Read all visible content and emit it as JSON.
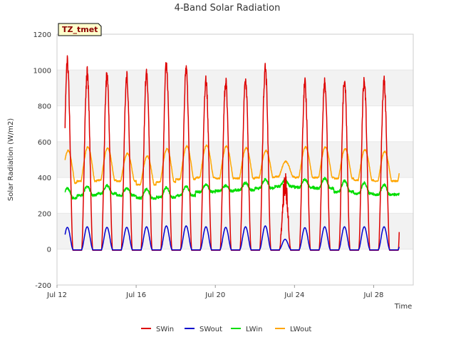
{
  "chart_data": {
    "type": "line",
    "title": "4-Band Solar Radiation",
    "xlabel": "Time",
    "ylabel": "Solar Radiation (W/m2)",
    "tag": "TZ_tmet",
    "ylim": [
      -200,
      1200
    ],
    "yticks": [
      -200,
      0,
      200,
      400,
      600,
      800,
      1000,
      1200
    ],
    "xlim": [
      12.0,
      30.0
    ],
    "xticks": [
      {
        "value": 12,
        "label": "Jul 12"
      },
      {
        "value": 16,
        "label": "Jul 16"
      },
      {
        "value": 20,
        "label": "Jul 20"
      },
      {
        "value": 24,
        "label": "Jul 24"
      },
      {
        "value": 28,
        "label": "Jul 28"
      }
    ],
    "grid": "horizontal bands",
    "legend_position": "bottom",
    "series": [
      {
        "name": "SWin",
        "color": "#dd0000",
        "daily_peaks": [
          1080,
          1020,
          1010,
          1000,
          1020,
          1075,
          1050,
          985,
          970,
          975,
          1050,
          450,
          960,
          970,
          975,
          980,
          975
        ]
      },
      {
        "name": "SWout",
        "color": "#0000cc",
        "daily_peaks": [
          122,
          125,
          122,
          122,
          125,
          130,
          130,
          125,
          122,
          125,
          130,
          55,
          120,
          125,
          125,
          125,
          125
        ]
      },
      {
        "name": "LWin",
        "color": "#00dd00",
        "day_levels": [
          340,
          350,
          355,
          340,
          335,
          345,
          350,
          360,
          355,
          370,
          390,
          385,
          390,
          395,
          380,
          370,
          360
        ],
        "night_levels": [
          285,
          300,
          310,
          300,
          285,
          290,
          300,
          320,
          325,
          330,
          340,
          350,
          345,
          340,
          320,
          310,
          305
        ]
      },
      {
        "name": "LWout",
        "color": "#ffa500",
        "daily_peaks": [
          550,
          570,
          565,
          535,
          520,
          560,
          575,
          580,
          575,
          565,
          550,
          490,
          570,
          570,
          560,
          555,
          545
        ],
        "night_levels": [
          370,
          380,
          385,
          380,
          360,
          375,
          390,
          400,
          395,
          395,
          400,
          405,
          400,
          400,
          395,
          385,
          380
        ]
      }
    ],
    "days_start": [
      12.3,
      13.3,
      14.3,
      15.3,
      16.3,
      17.3,
      18.3,
      19.3,
      20.3,
      21.3,
      22.3,
      23.3,
      24.3,
      25.3,
      26.3,
      27.3,
      28.3
    ]
  }
}
